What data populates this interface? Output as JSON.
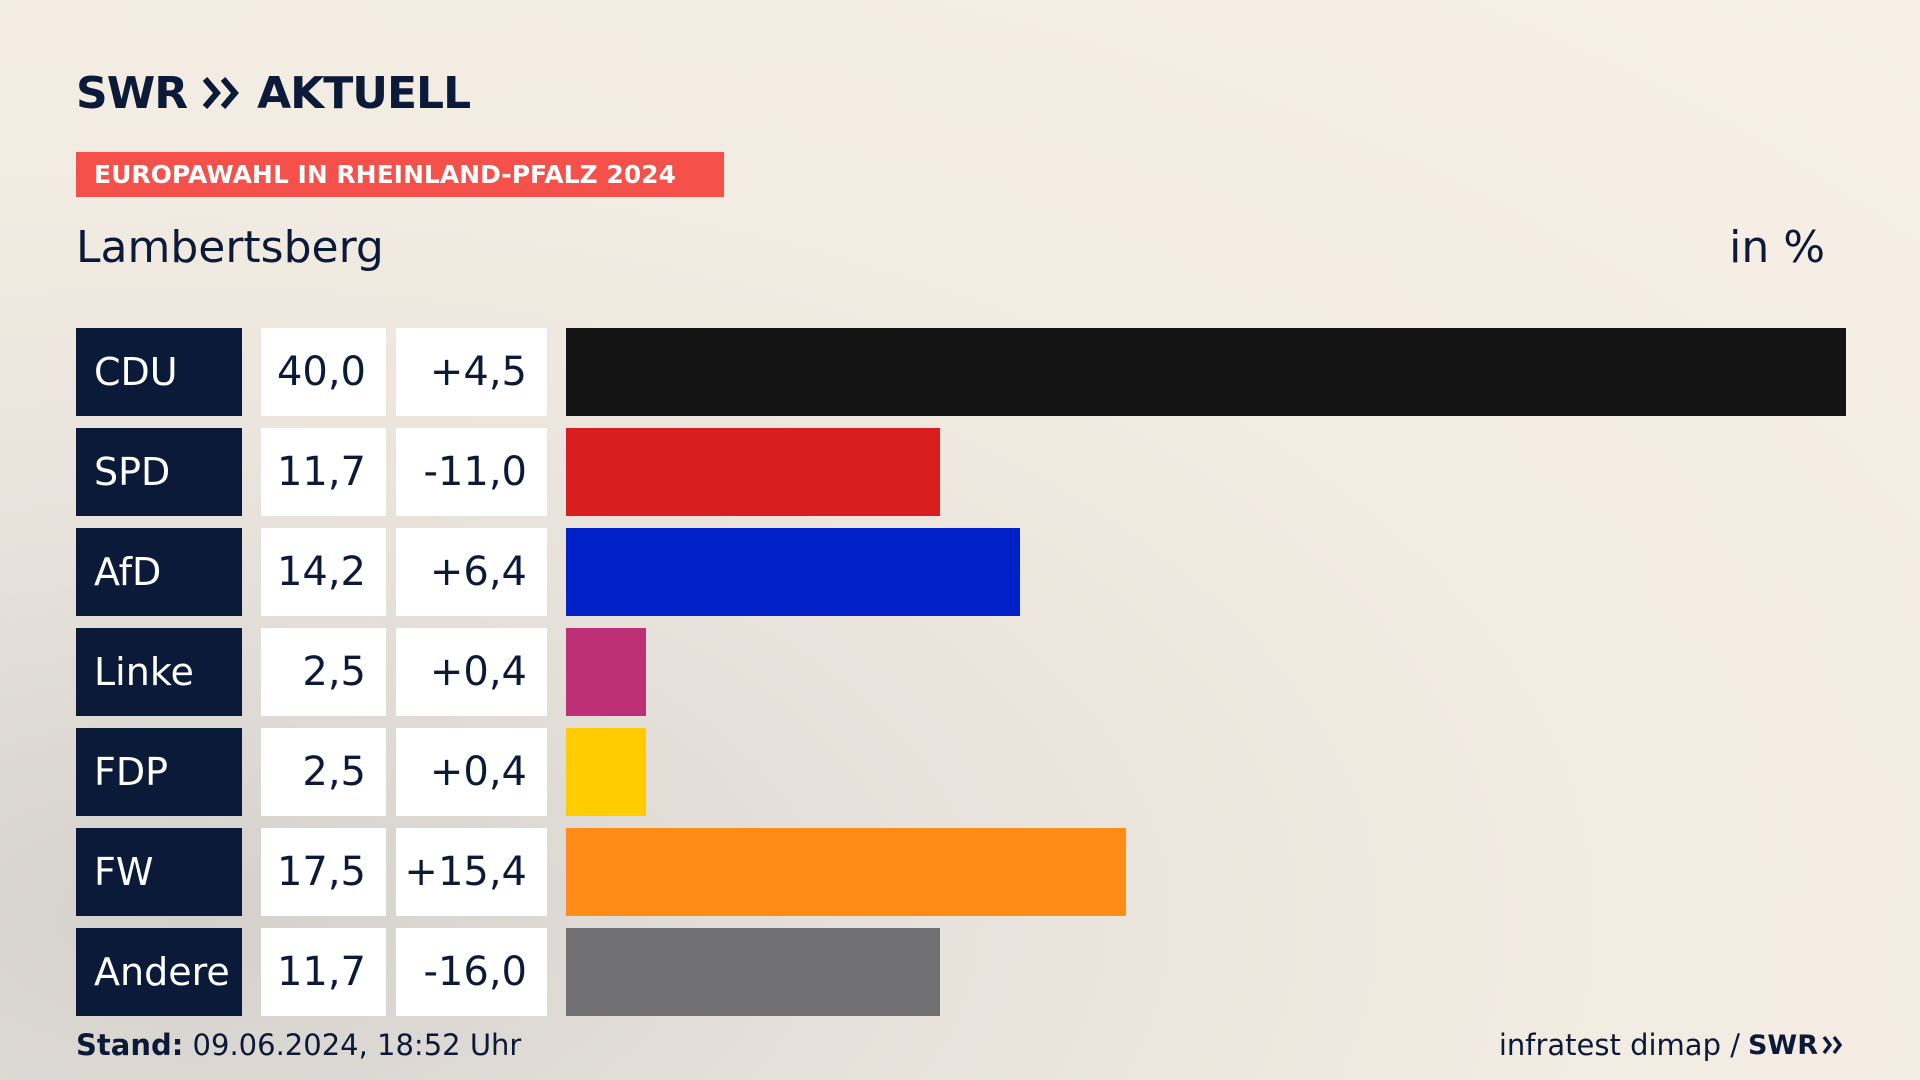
{
  "header": {
    "brand_left": "SWR",
    "brand_right": "AKTUELL",
    "banner": "EUROPAWAHL IN RHEINLAND-PFALZ 2024",
    "place": "Lambertsberg",
    "unit": "in %"
  },
  "footer": {
    "stand_label": "Stand:",
    "stand_value": "09.06.2024, 18:52 Uhr",
    "source": "infratest dimap /",
    "source_brand": "SWR"
  },
  "chart_data": {
    "type": "bar",
    "orientation": "horizontal",
    "value_unit": "%",
    "xlim": [
      0,
      40
    ],
    "categories": [
      "CDU",
      "SPD",
      "AfD",
      "Linke",
      "FDP",
      "FW",
      "Andere"
    ],
    "values": [
      40.0,
      11.7,
      14.2,
      2.5,
      2.5,
      17.5,
      11.7
    ],
    "value_labels": [
      "40,0",
      "11,7",
      "14,2",
      "2,5",
      "2,5",
      "17,5",
      "11,7"
    ],
    "changes": [
      4.5,
      -11.0,
      6.4,
      0.4,
      0.4,
      15.4,
      -16.0
    ],
    "change_labels": [
      "+4,5",
      "-11,0",
      "+6,4",
      "+0,4",
      "+0,4",
      "+15,4",
      "-16,0"
    ],
    "colors": [
      "#141414",
      "#d81e1e",
      "#0021c8",
      "#bd3075",
      "#ffcc00",
      "#ff8c17",
      "#717173"
    ]
  }
}
